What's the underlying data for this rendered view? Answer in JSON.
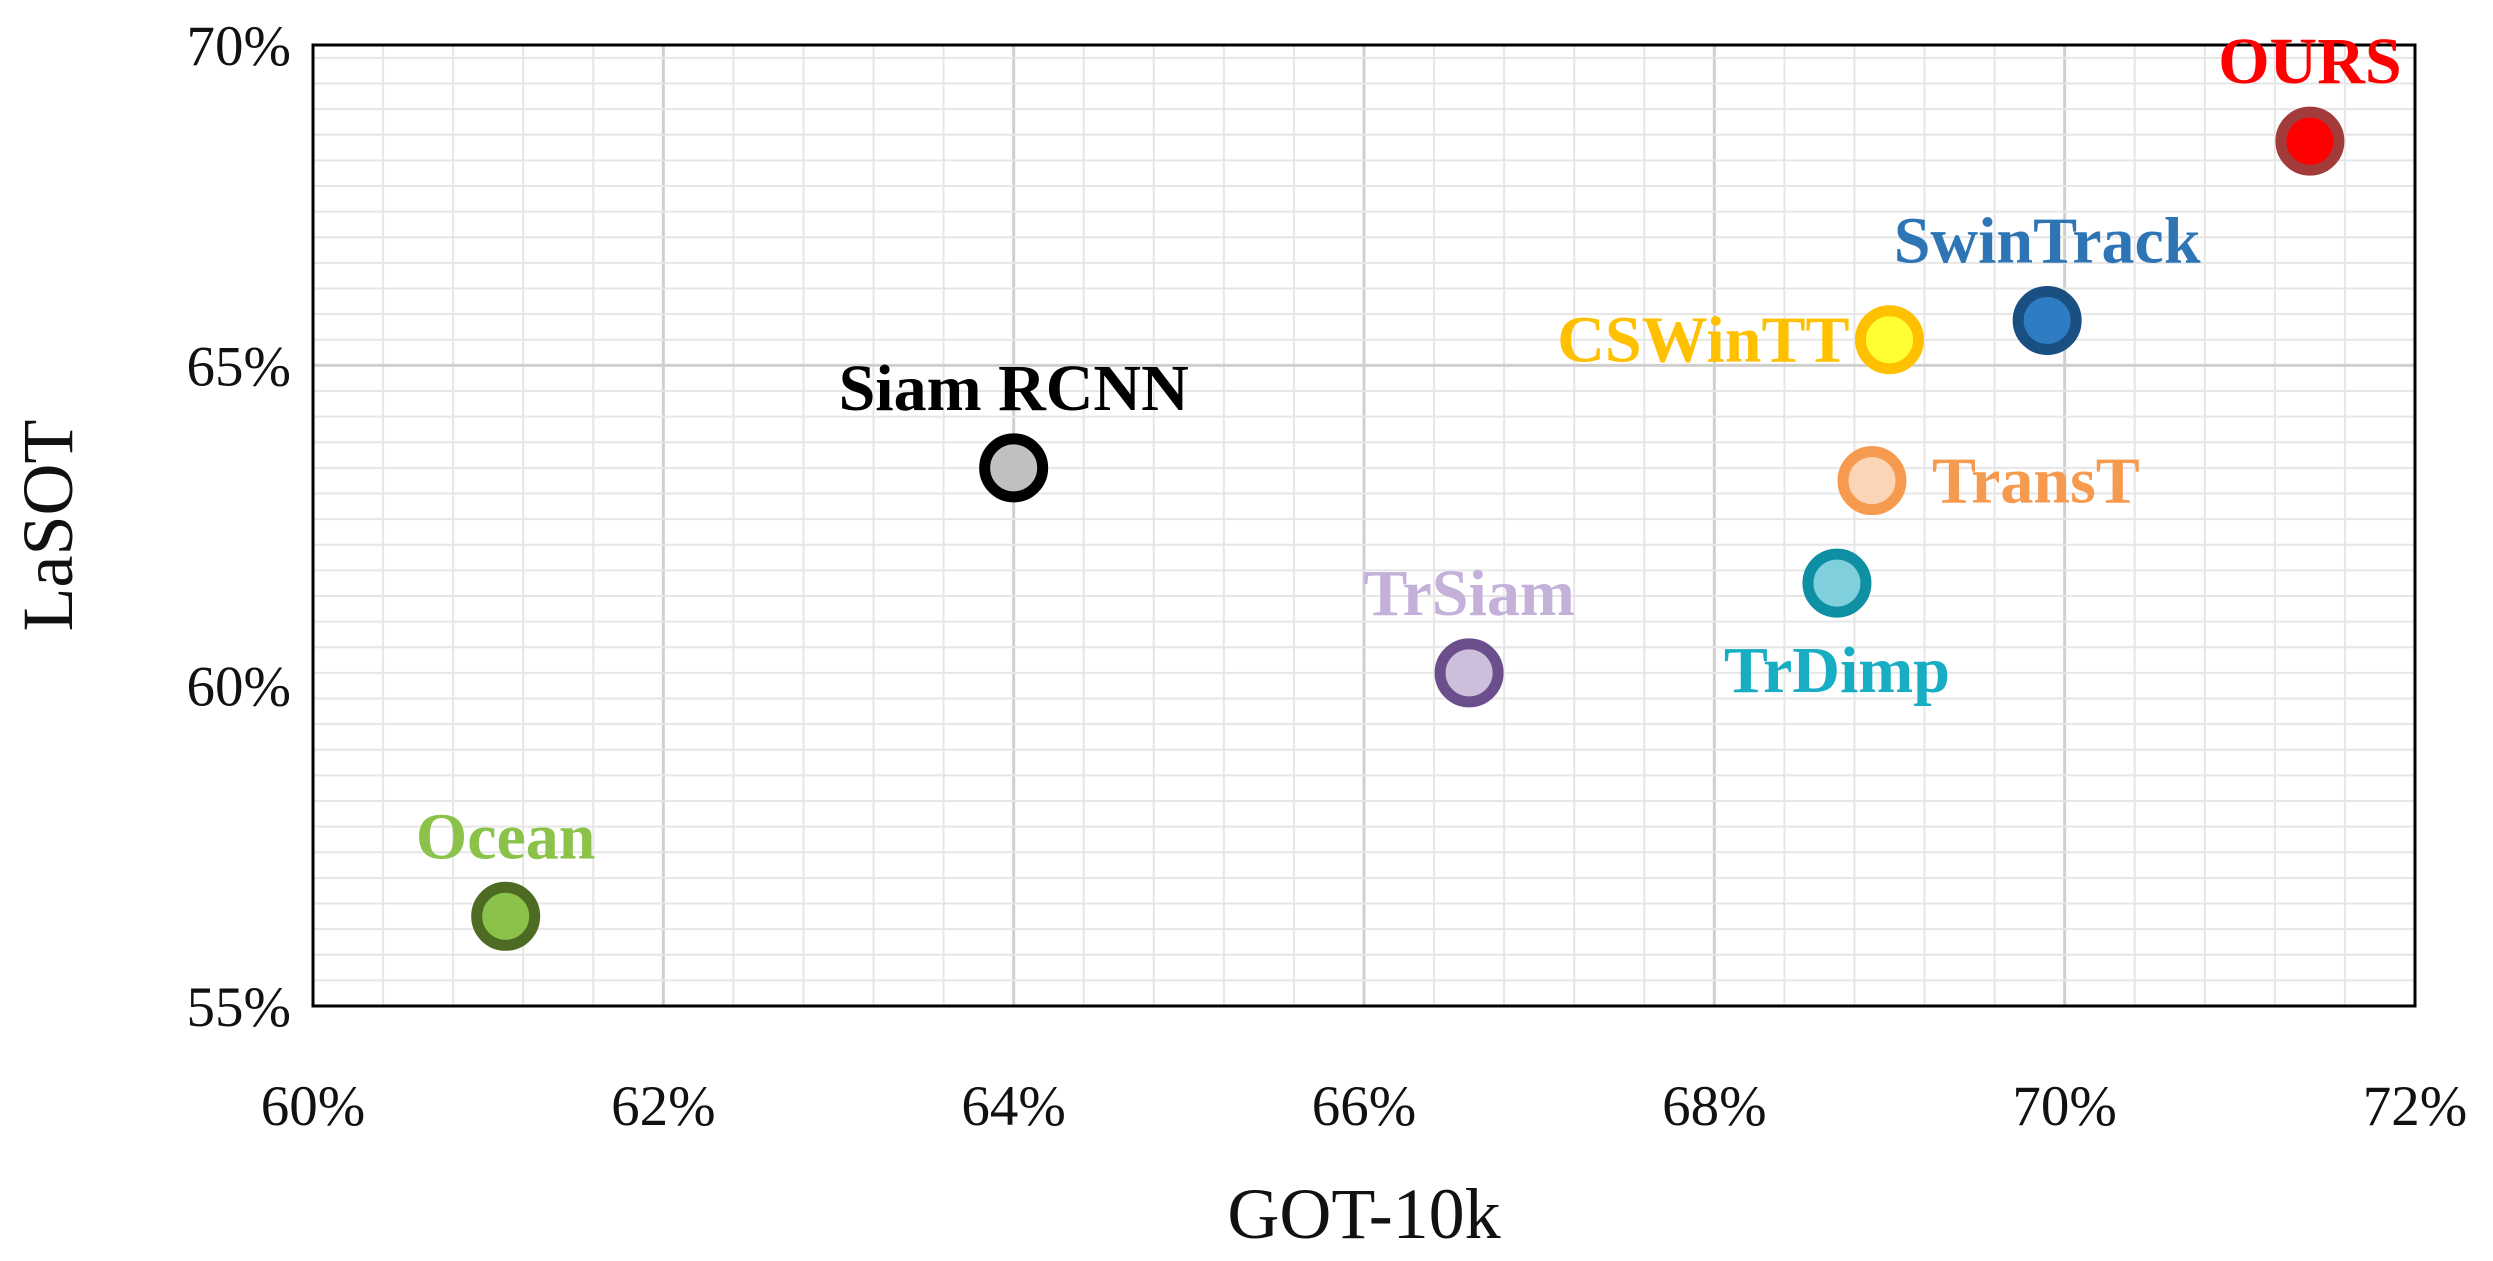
{
  "chart_data": {
    "type": "scatter",
    "title": "",
    "xlabel": "GOT-10k",
    "ylabel": "LaSOT",
    "xlim": [
      60,
      72
    ],
    "ylim": [
      55,
      70
    ],
    "x_ticks": [
      60,
      62,
      64,
      66,
      68,
      70,
      72
    ],
    "y_ticks": [
      55,
      60,
      65,
      70
    ],
    "x_tick_labels": [
      "60%",
      "62%",
      "64%",
      "66%",
      "68%",
      "70%",
      "72%"
    ],
    "y_tick_labels": [
      "55%",
      "60%",
      "65%",
      "70%"
    ],
    "grid": true,
    "grid_minor_step": 0.4,
    "legend": "none",
    "points": [
      {
        "label": "Ocean",
        "x": 61.1,
        "y": 56.4,
        "fill": "#8BC34A",
        "stroke": "#4D6B23",
        "label_color": "#8BC34A",
        "label_pos": "above"
      },
      {
        "label": "Siam RCNN",
        "x": 64.0,
        "y": 63.4,
        "fill": "#C0C0C0",
        "stroke": "#000000",
        "label_color": "#000000",
        "label_pos": "above"
      },
      {
        "label": "TrSiam",
        "x": 66.6,
        "y": 60.2,
        "fill": "#CDBFDC",
        "stroke": "#6A4F8C",
        "label_color": "#C3B1DA",
        "label_pos": "above"
      },
      {
        "label": "TrDimp",
        "x": 68.7,
        "y": 61.6,
        "fill": "#7FCFDD",
        "stroke": "#0F8FA3",
        "label_color": "#17AEC4",
        "label_pos": "below"
      },
      {
        "label": "TransT",
        "x": 68.9,
        "y": 63.2,
        "fill": "#FBD5B5",
        "stroke": "#F59A4E",
        "label_color": "#F59A4E",
        "label_pos": "right"
      },
      {
        "label": "CSWinTT",
        "x": 69.0,
        "y": 65.4,
        "fill": "#FFFF33",
        "stroke": "#FFC000",
        "label_color": "#FFC000",
        "label_pos": "left"
      },
      {
        "label": "SwinTrack",
        "x": 69.9,
        "y": 65.7,
        "fill": "#2E7CC4",
        "stroke": "#1A4F82",
        "label_color": "#2E75B6",
        "label_pos": "above"
      },
      {
        "label": "OURS",
        "x": 71.4,
        "y": 68.5,
        "fill": "#FF0000",
        "stroke": "#A43B3B",
        "label_color": "#FF0000",
        "label_pos": "above"
      }
    ]
  }
}
